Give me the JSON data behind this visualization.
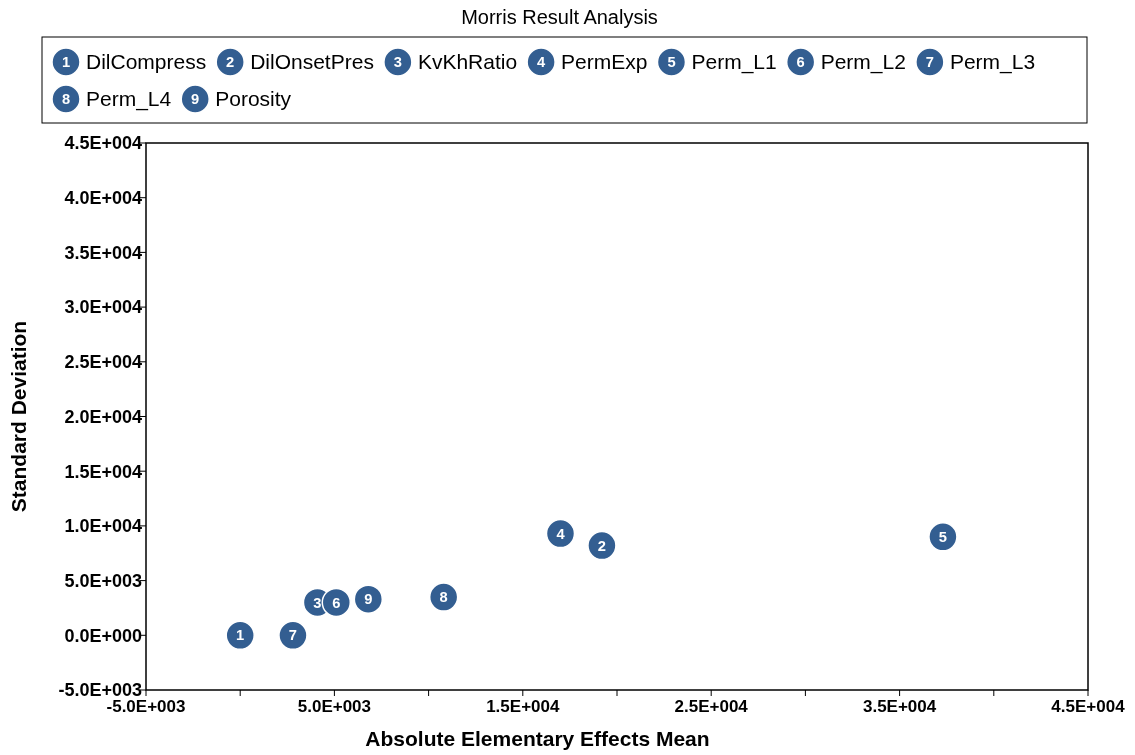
{
  "chart_data": {
    "type": "scatter",
    "title": "Morris Result Analysis",
    "xlabel": "Absolute Elementary Effects Mean",
    "ylabel": "Standard Deviation",
    "xlim": [
      -5000,
      45000
    ],
    "ylim": [
      -5000,
      45000
    ],
    "xticks": [
      {
        "value": -5000,
        "label": "-5.0E+003"
      },
      {
        "value": 0,
        "label": null
      },
      {
        "value": 5000,
        "label": "5.0E+003"
      },
      {
        "value": 10000,
        "label": null
      },
      {
        "value": 15000,
        "label": "1.5E+004"
      },
      {
        "value": 20000,
        "label": null
      },
      {
        "value": 25000,
        "label": "2.5E+004"
      },
      {
        "value": 30000,
        "label": null
      },
      {
        "value": 35000,
        "label": "3.5E+004"
      },
      {
        "value": 40000,
        "label": null
      },
      {
        "value": 45000,
        "label": "4.5E+004"
      }
    ],
    "yticks": [
      {
        "value": -5000,
        "label": "-5.0E+003"
      },
      {
        "value": 0,
        "label": "0.0E+000"
      },
      {
        "value": 5000,
        "label": "5.0E+003"
      },
      {
        "value": 10000,
        "label": "1.0E+004"
      },
      {
        "value": 15000,
        "label": "1.5E+004"
      },
      {
        "value": 20000,
        "label": "2.0E+004"
      },
      {
        "value": 25000,
        "label": "2.5E+004"
      },
      {
        "value": 30000,
        "label": "3.0E+004"
      },
      {
        "value": 35000,
        "label": "3.5E+004"
      },
      {
        "value": 40000,
        "label": "4.0E+004"
      },
      {
        "value": 45000,
        "label": "4.5E+004"
      }
    ],
    "annotations": [
      {
        "text": "1",
        "x": 0,
        "y": 0
      },
      {
        "text": "2",
        "x": 19200,
        "y": 8200
      },
      {
        "text": "3",
        "x": 4100,
        "y": 3000
      },
      {
        "text": "4",
        "x": 17000,
        "y": 9300
      },
      {
        "text": "5",
        "x": 37300,
        "y": 9000
      },
      {
        "text": "6",
        "x": 5100,
        "y": 3000
      },
      {
        "text": "7",
        "x": 2800,
        "y": 0
      },
      {
        "text": "8",
        "x": 10800,
        "y": 3500
      },
      {
        "text": "9",
        "x": 6800,
        "y": 3300
      }
    ],
    "grid": false,
    "legend": "top",
    "marker": "circle",
    "series": [
      {
        "name": "DilCompress",
        "color": "#335e91",
        "x": [
          0
        ],
        "values": [
          0
        ]
      },
      {
        "name": "DilOnsetPres",
        "color": "#335e91",
        "x": [
          19200
        ],
        "values": [
          8200
        ]
      },
      {
        "name": "KvKhRatio",
        "color": "#335e91",
        "x": [
          4100
        ],
        "values": [
          3000
        ]
      },
      {
        "name": "PermExp",
        "color": "#335e91",
        "x": [
          17000
        ],
        "values": [
          9300
        ]
      },
      {
        "name": "Perm_L1",
        "color": "#335e91",
        "x": [
          37300
        ],
        "values": [
          9000
        ]
      },
      {
        "name": "Perm_L2",
        "color": "#335e91",
        "x": [
          5100
        ],
        "values": [
          3000
        ]
      },
      {
        "name": "Perm_L3",
        "color": "#335e91",
        "x": [
          2800
        ],
        "values": [
          0
        ]
      },
      {
        "name": "Perm_L4",
        "color": "#335e91",
        "x": [
          10800
        ],
        "values": [
          3500
        ]
      },
      {
        "name": "Porosity",
        "color": "#335e91",
        "x": [
          6800
        ],
        "values": [
          3300
        ]
      }
    ]
  }
}
